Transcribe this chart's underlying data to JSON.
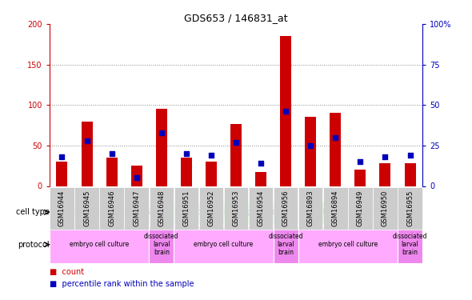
{
  "title": "GDS653 / 146831_at",
  "samples": [
    "GSM16944",
    "GSM16945",
    "GSM16946",
    "GSM16947",
    "GSM16948",
    "GSM16951",
    "GSM16952",
    "GSM16953",
    "GSM16954",
    "GSM16956",
    "GSM16893",
    "GSM16894",
    "GSM16949",
    "GSM16950",
    "GSM16955"
  ],
  "count_values": [
    30,
    80,
    35,
    25,
    95,
    35,
    30,
    77,
    17,
    185,
    85,
    90,
    20,
    28,
    28
  ],
  "percentile_values": [
    18,
    28,
    20,
    5,
    33,
    20,
    19,
    27,
    14,
    46,
    25,
    30,
    15,
    18,
    19
  ],
  "left_ylim": [
    0,
    200
  ],
  "right_ylim": [
    0,
    100
  ],
  "left_yticks": [
    0,
    50,
    100,
    150,
    200
  ],
  "right_yticks": [
    0,
    25,
    50,
    75,
    100
  ],
  "right_yticklabels": [
    "0",
    "25",
    "50",
    "75",
    "100%"
  ],
  "count_color": "#cc0000",
  "percentile_color": "#0000bb",
  "grid_color": "#888888",
  "bg_color": "#ffffff",
  "cell_type_groups": [
    {
      "label": "cholinergic neurons",
      "start": 0,
      "end": 4,
      "color": "#ccffcc"
    },
    {
      "label": "Gad1 expressing neurons",
      "start": 5,
      "end": 9,
      "color": "#99ff99"
    },
    {
      "label": "cholinergic/Gad1 negative",
      "start": 10,
      "end": 14,
      "color": "#55ee55"
    }
  ],
  "protocol_groups": [
    {
      "label": "embryo cell culture",
      "start": 0,
      "end": 3,
      "color": "#ffaaff"
    },
    {
      "label": "dissociated\nlarval\nbrain",
      "start": 4,
      "end": 4,
      "color": "#ee88ee"
    },
    {
      "label": "embryo cell culture",
      "start": 5,
      "end": 8,
      "color": "#ffaaff"
    },
    {
      "label": "dissociated\nlarval\nbrain",
      "start": 9,
      "end": 9,
      "color": "#ee88ee"
    },
    {
      "label": "embryo cell culture",
      "start": 10,
      "end": 13,
      "color": "#ffaaff"
    },
    {
      "label": "dissociated\nlarval\nbrain",
      "start": 14,
      "end": 14,
      "color": "#ee88ee"
    }
  ],
  "legend_items": [
    {
      "label": "count",
      "color": "#cc0000"
    },
    {
      "label": "percentile rank within the sample",
      "color": "#0000bb"
    }
  ],
  "tick_label_bg": "#cccccc"
}
